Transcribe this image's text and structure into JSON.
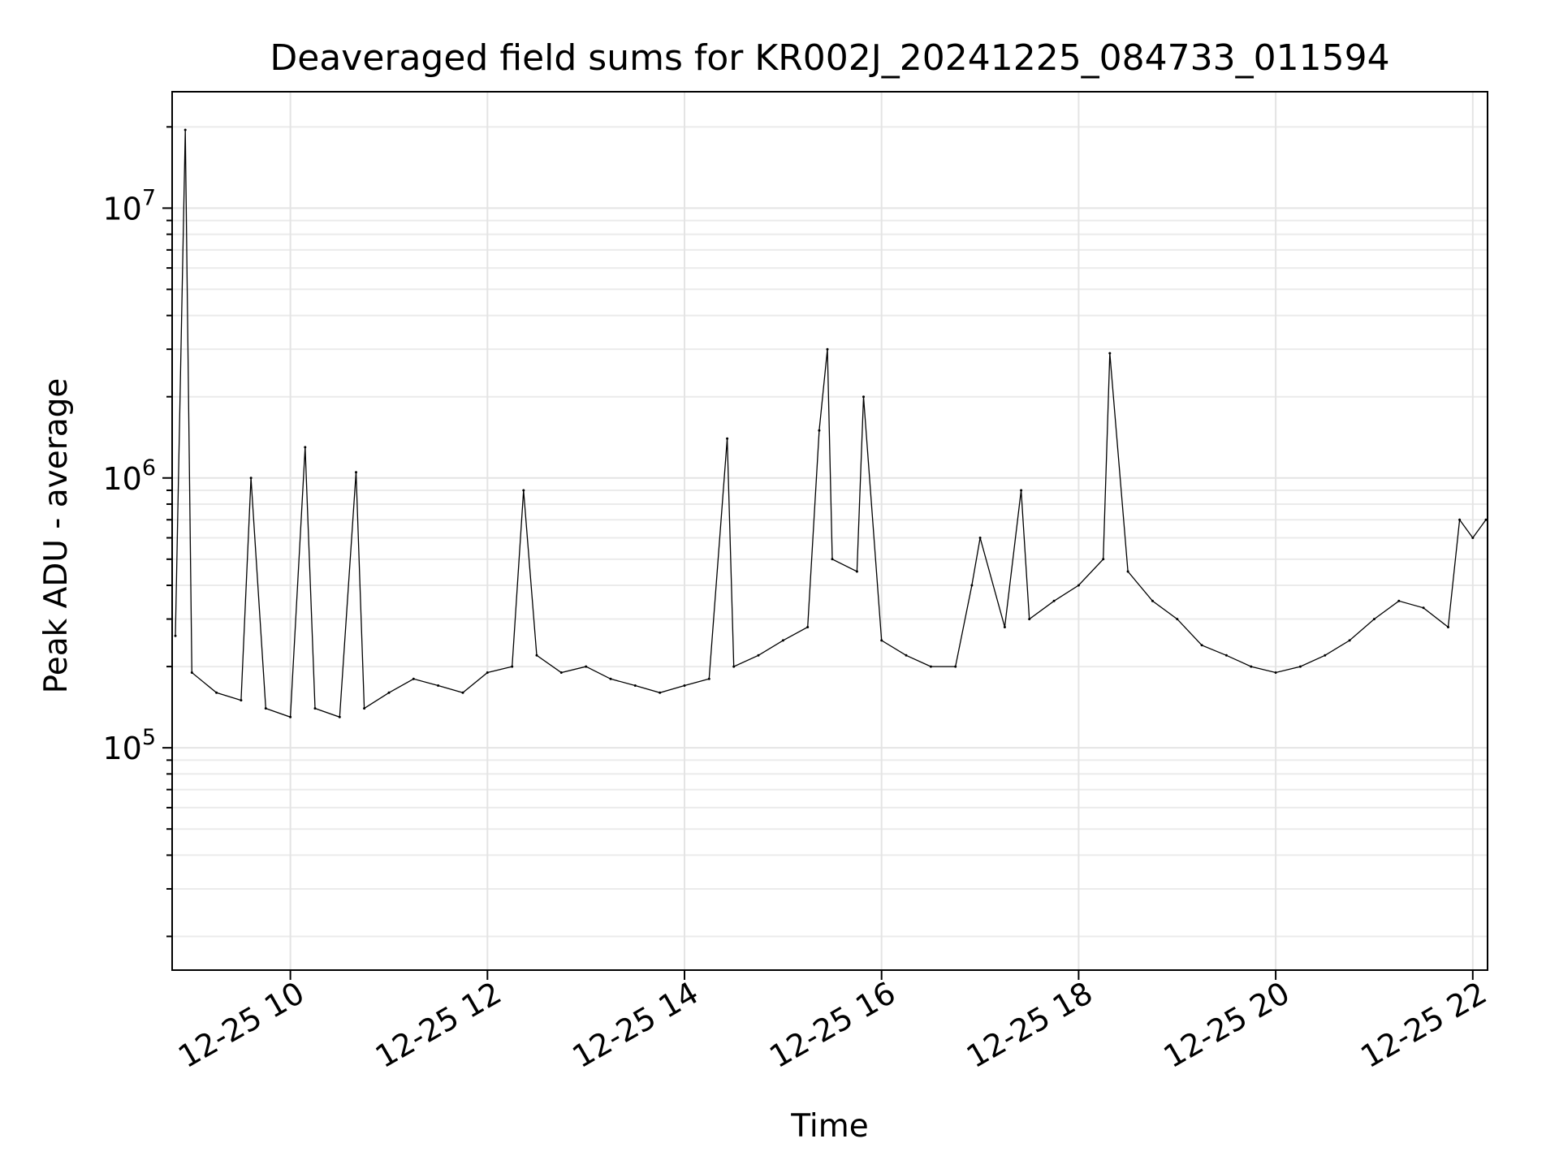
{
  "chart_data": {
    "type": "line",
    "title": "Deaveraged field sums for KR002J_20241225_084733_011594",
    "xlabel": "Time",
    "ylabel": "Peak ADU - average",
    "yscale": "log",
    "ylim": [
      15000,
      27000000
    ],
    "xlim": [
      "2024-12-25 08:48",
      "2024-12-25 22:09"
    ],
    "grid": true,
    "x_ticks": [
      {
        "value": "2024-12-25 10:00",
        "label": "12-25 10"
      },
      {
        "value": "2024-12-25 12:00",
        "label": "12-25 12"
      },
      {
        "value": "2024-12-25 14:00",
        "label": "12-25 14"
      },
      {
        "value": "2024-12-25 16:00",
        "label": "12-25 16"
      },
      {
        "value": "2024-12-25 18:00",
        "label": "12-25 18"
      },
      {
        "value": "2024-12-25 20:00",
        "label": "12-25 20"
      },
      {
        "value": "2024-12-25 22:00",
        "label": "12-25 22"
      }
    ],
    "y_ticks": [
      {
        "value": 100000,
        "base": "10",
        "exp": "5"
      },
      {
        "value": 1000000,
        "base": "10",
        "exp": "6"
      },
      {
        "value": 10000000,
        "base": "10",
        "exp": "7"
      }
    ],
    "series": [
      {
        "color": "#000000",
        "x": [
          "2024-12-25 08:50",
          "2024-12-25 08:56",
          "2024-12-25 09:00",
          "2024-12-25 09:15",
          "2024-12-25 09:30",
          "2024-12-25 09:36",
          "2024-12-25 09:45",
          "2024-12-25 10:00",
          "2024-12-25 10:09",
          "2024-12-25 10:15",
          "2024-12-25 10:30",
          "2024-12-25 10:40",
          "2024-12-25 10:45",
          "2024-12-25 11:00",
          "2024-12-25 11:15",
          "2024-12-25 11:30",
          "2024-12-25 11:45",
          "2024-12-25 12:00",
          "2024-12-25 12:15",
          "2024-12-25 12:22",
          "2024-12-25 12:30",
          "2024-12-25 12:45",
          "2024-12-25 13:00",
          "2024-12-25 13:15",
          "2024-12-25 13:30",
          "2024-12-25 13:45",
          "2024-12-25 14:00",
          "2024-12-25 14:15",
          "2024-12-25 14:26",
          "2024-12-25 14:30",
          "2024-12-25 14:45",
          "2024-12-25 15:00",
          "2024-12-25 15:15",
          "2024-12-25 15:22",
          "2024-12-25 15:27",
          "2024-12-25 15:30",
          "2024-12-25 15:45",
          "2024-12-25 15:49",
          "2024-12-25 16:00",
          "2024-12-25 16:15",
          "2024-12-25 16:30",
          "2024-12-25 16:45",
          "2024-12-25 16:55",
          "2024-12-25 17:00",
          "2024-12-25 17:15",
          "2024-12-25 17:25",
          "2024-12-25 17:30",
          "2024-12-25 17:45",
          "2024-12-25 18:00",
          "2024-12-25 18:15",
          "2024-12-25 18:19",
          "2024-12-25 18:30",
          "2024-12-25 18:45",
          "2024-12-25 19:00",
          "2024-12-25 19:15",
          "2024-12-25 19:30",
          "2024-12-25 19:45",
          "2024-12-25 20:00",
          "2024-12-25 20:15",
          "2024-12-25 20:30",
          "2024-12-25 20:45",
          "2024-12-25 21:00",
          "2024-12-25 21:15",
          "2024-12-25 21:30",
          "2024-12-25 21:45",
          "2024-12-25 21:52",
          "2024-12-25 22:00",
          "2024-12-25 22:08"
        ],
        "y": [
          260000,
          19500000,
          190000,
          160000,
          150000,
          1000000,
          140000,
          130000,
          1300000,
          140000,
          130000,
          1050000,
          140000,
          160000,
          180000,
          170000,
          160000,
          190000,
          200000,
          900000,
          220000,
          190000,
          200000,
          180000,
          170000,
          160000,
          170000,
          180000,
          1400000,
          200000,
          220000,
          250000,
          280000,
          1500000,
          3000000,
          500000,
          450000,
          2000000,
          250000,
          220000,
          200000,
          200000,
          400000,
          600000,
          280000,
          900000,
          300000,
          350000,
          400000,
          500000,
          2900000,
          450000,
          350000,
          300000,
          240000,
          220000,
          200000,
          190000,
          200000,
          220000,
          250000,
          300000,
          350000,
          330000,
          280000,
          700000,
          600000,
          700000
        ]
      }
    ]
  }
}
